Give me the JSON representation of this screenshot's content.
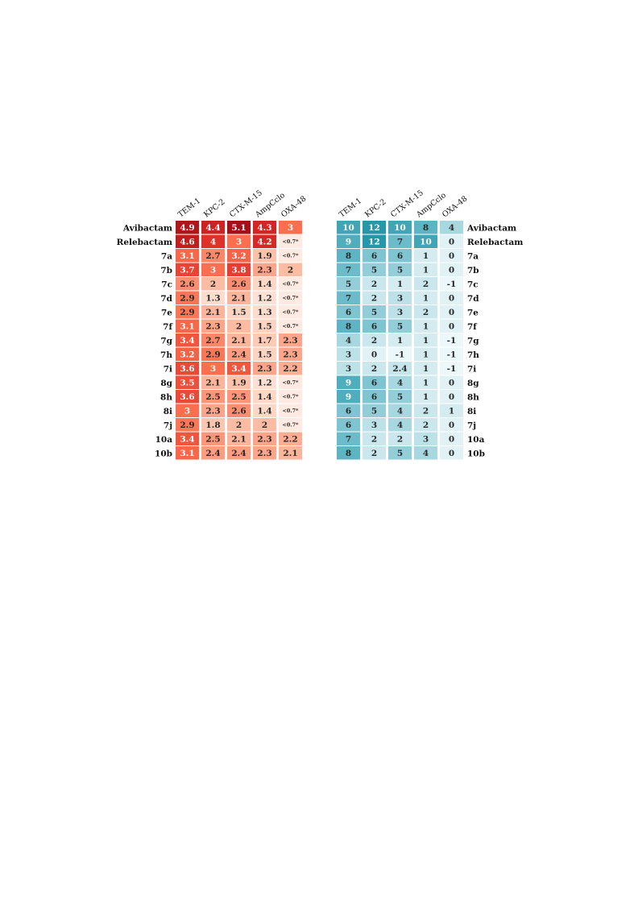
{
  "chart_data": [
    {
      "type": "heatmap",
      "columns": [
        "TEM-1",
        "KPC-2",
        "CTX-M-15",
        "AmpCclo",
        "OXA-48"
      ],
      "rows": [
        "Avibactam",
        "Relebactam",
        "7a",
        "7b",
        "7c",
        "7d",
        "7e",
        "7f",
        "7g",
        "7h",
        "7i",
        "8g",
        "8h",
        "8i",
        "7j",
        "10a",
        "10b"
      ],
      "colormap": "reds",
      "values": [
        [
          "4.9",
          "4.4",
          "5.1",
          "4.3",
          "3"
        ],
        [
          "4.6",
          "4",
          "3",
          "4.2",
          "<0.7*"
        ],
        [
          "3.1",
          "2.7",
          "3.2",
          "1.9",
          "<0.7*"
        ],
        [
          "3.7",
          "3",
          "3.8",
          "2.3",
          "2"
        ],
        [
          "2.6",
          "2",
          "2.6",
          "1.4",
          "<0.7*"
        ],
        [
          "2.9",
          "1.3",
          "2.1",
          "1.2",
          "<0.7*"
        ],
        [
          "2.9",
          "2.1",
          "1.5",
          "1.3",
          "<0.7*"
        ],
        [
          "3.1",
          "2.3",
          "2",
          "1.5",
          "<0.7*"
        ],
        [
          "3.4",
          "2.7",
          "2.1",
          "1.7",
          "2.3"
        ],
        [
          "3.2",
          "2.9",
          "2.4",
          "1.5",
          "2.3"
        ],
        [
          "3.6",
          "3",
          "3.4",
          "2.3",
          "2.2"
        ],
        [
          "3.5",
          "2.1",
          "1.9",
          "1.2",
          "<0.7*"
        ],
        [
          "3.6",
          "2.5",
          "2.5",
          "1.4",
          "<0.7*"
        ],
        [
          "3",
          "2.3",
          "2.6",
          "1.4",
          "<0.7*"
        ],
        [
          "2.9",
          "1.8",
          "2",
          "2",
          "<0.7*"
        ],
        [
          "3.4",
          "2.5",
          "2.1",
          "2.3",
          "2.2"
        ],
        [
          "3.1",
          "2.4",
          "2.4",
          "2.3",
          "2.1"
        ]
      ]
    },
    {
      "type": "heatmap",
      "columns": [
        "TEM-1",
        "KPC-2",
        "CTX-M-15",
        "AmpCclo",
        "OXA-48"
      ],
      "rows": [
        "Avibactam",
        "Relebactam",
        "7a",
        "7b",
        "7c",
        "7d",
        "7e",
        "7f",
        "7g",
        "7h",
        "7i",
        "8g",
        "8h",
        "8i",
        "7j",
        "10a",
        "10b"
      ],
      "colormap": "teals",
      "values": [
        [
          "10",
          "12",
          "10",
          "8",
          "4"
        ],
        [
          "9",
          "12",
          "7",
          "10",
          "0"
        ],
        [
          "8",
          "6",
          "6",
          "1",
          "0"
        ],
        [
          "7",
          "5",
          "5",
          "1",
          "0"
        ],
        [
          "5",
          "2",
          "1",
          "2",
          "-1"
        ],
        [
          "7",
          "2",
          "3",
          "1",
          "0"
        ],
        [
          "6",
          "5",
          "3",
          "2",
          "0"
        ],
        [
          "8",
          "6",
          "5",
          "1",
          "0"
        ],
        [
          "4",
          "2",
          "1",
          "1",
          "-1"
        ],
        [
          "3",
          "0",
          "-1",
          "1",
          "-1"
        ],
        [
          "3",
          "2",
          "2.4",
          "1",
          "-1"
        ],
        [
          "9",
          "6",
          "4",
          "1",
          "0"
        ],
        [
          "9",
          "6",
          "5",
          "1",
          "0"
        ],
        [
          "6",
          "5",
          "4",
          "2",
          "1"
        ],
        [
          "6",
          "3",
          "4",
          "2",
          "0"
        ],
        [
          "7",
          "2",
          "2",
          "3",
          "0"
        ],
        [
          "8",
          "2",
          "5",
          "4",
          "0"
        ]
      ]
    }
  ]
}
